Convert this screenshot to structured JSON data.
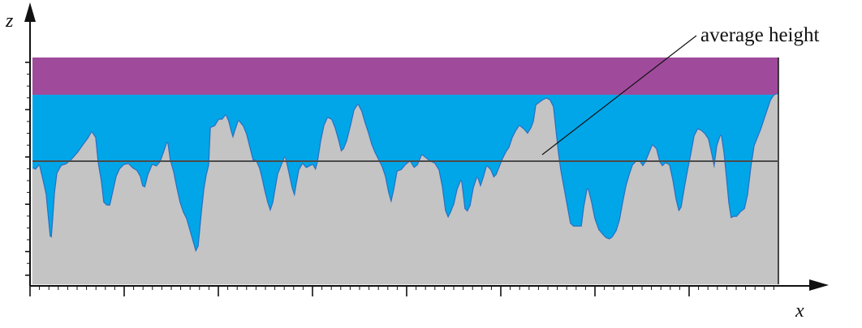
{
  "diagram": {
    "annotation": "average height",
    "x_axis_label": "x",
    "z_axis_label": "z",
    "colors": {
      "top_band": "#a04a9c",
      "liquid_fill": "#00a6e8",
      "surface_solid": "#c4c4c4",
      "surface_edge": "#2b6fc0",
      "average_line": "#4a4a4a",
      "axis": "#111111"
    },
    "icons": {
      "x_axis_arrow": "arrow-right-icon",
      "z_axis_arrow": "arrow-up-icon"
    }
  }
}
